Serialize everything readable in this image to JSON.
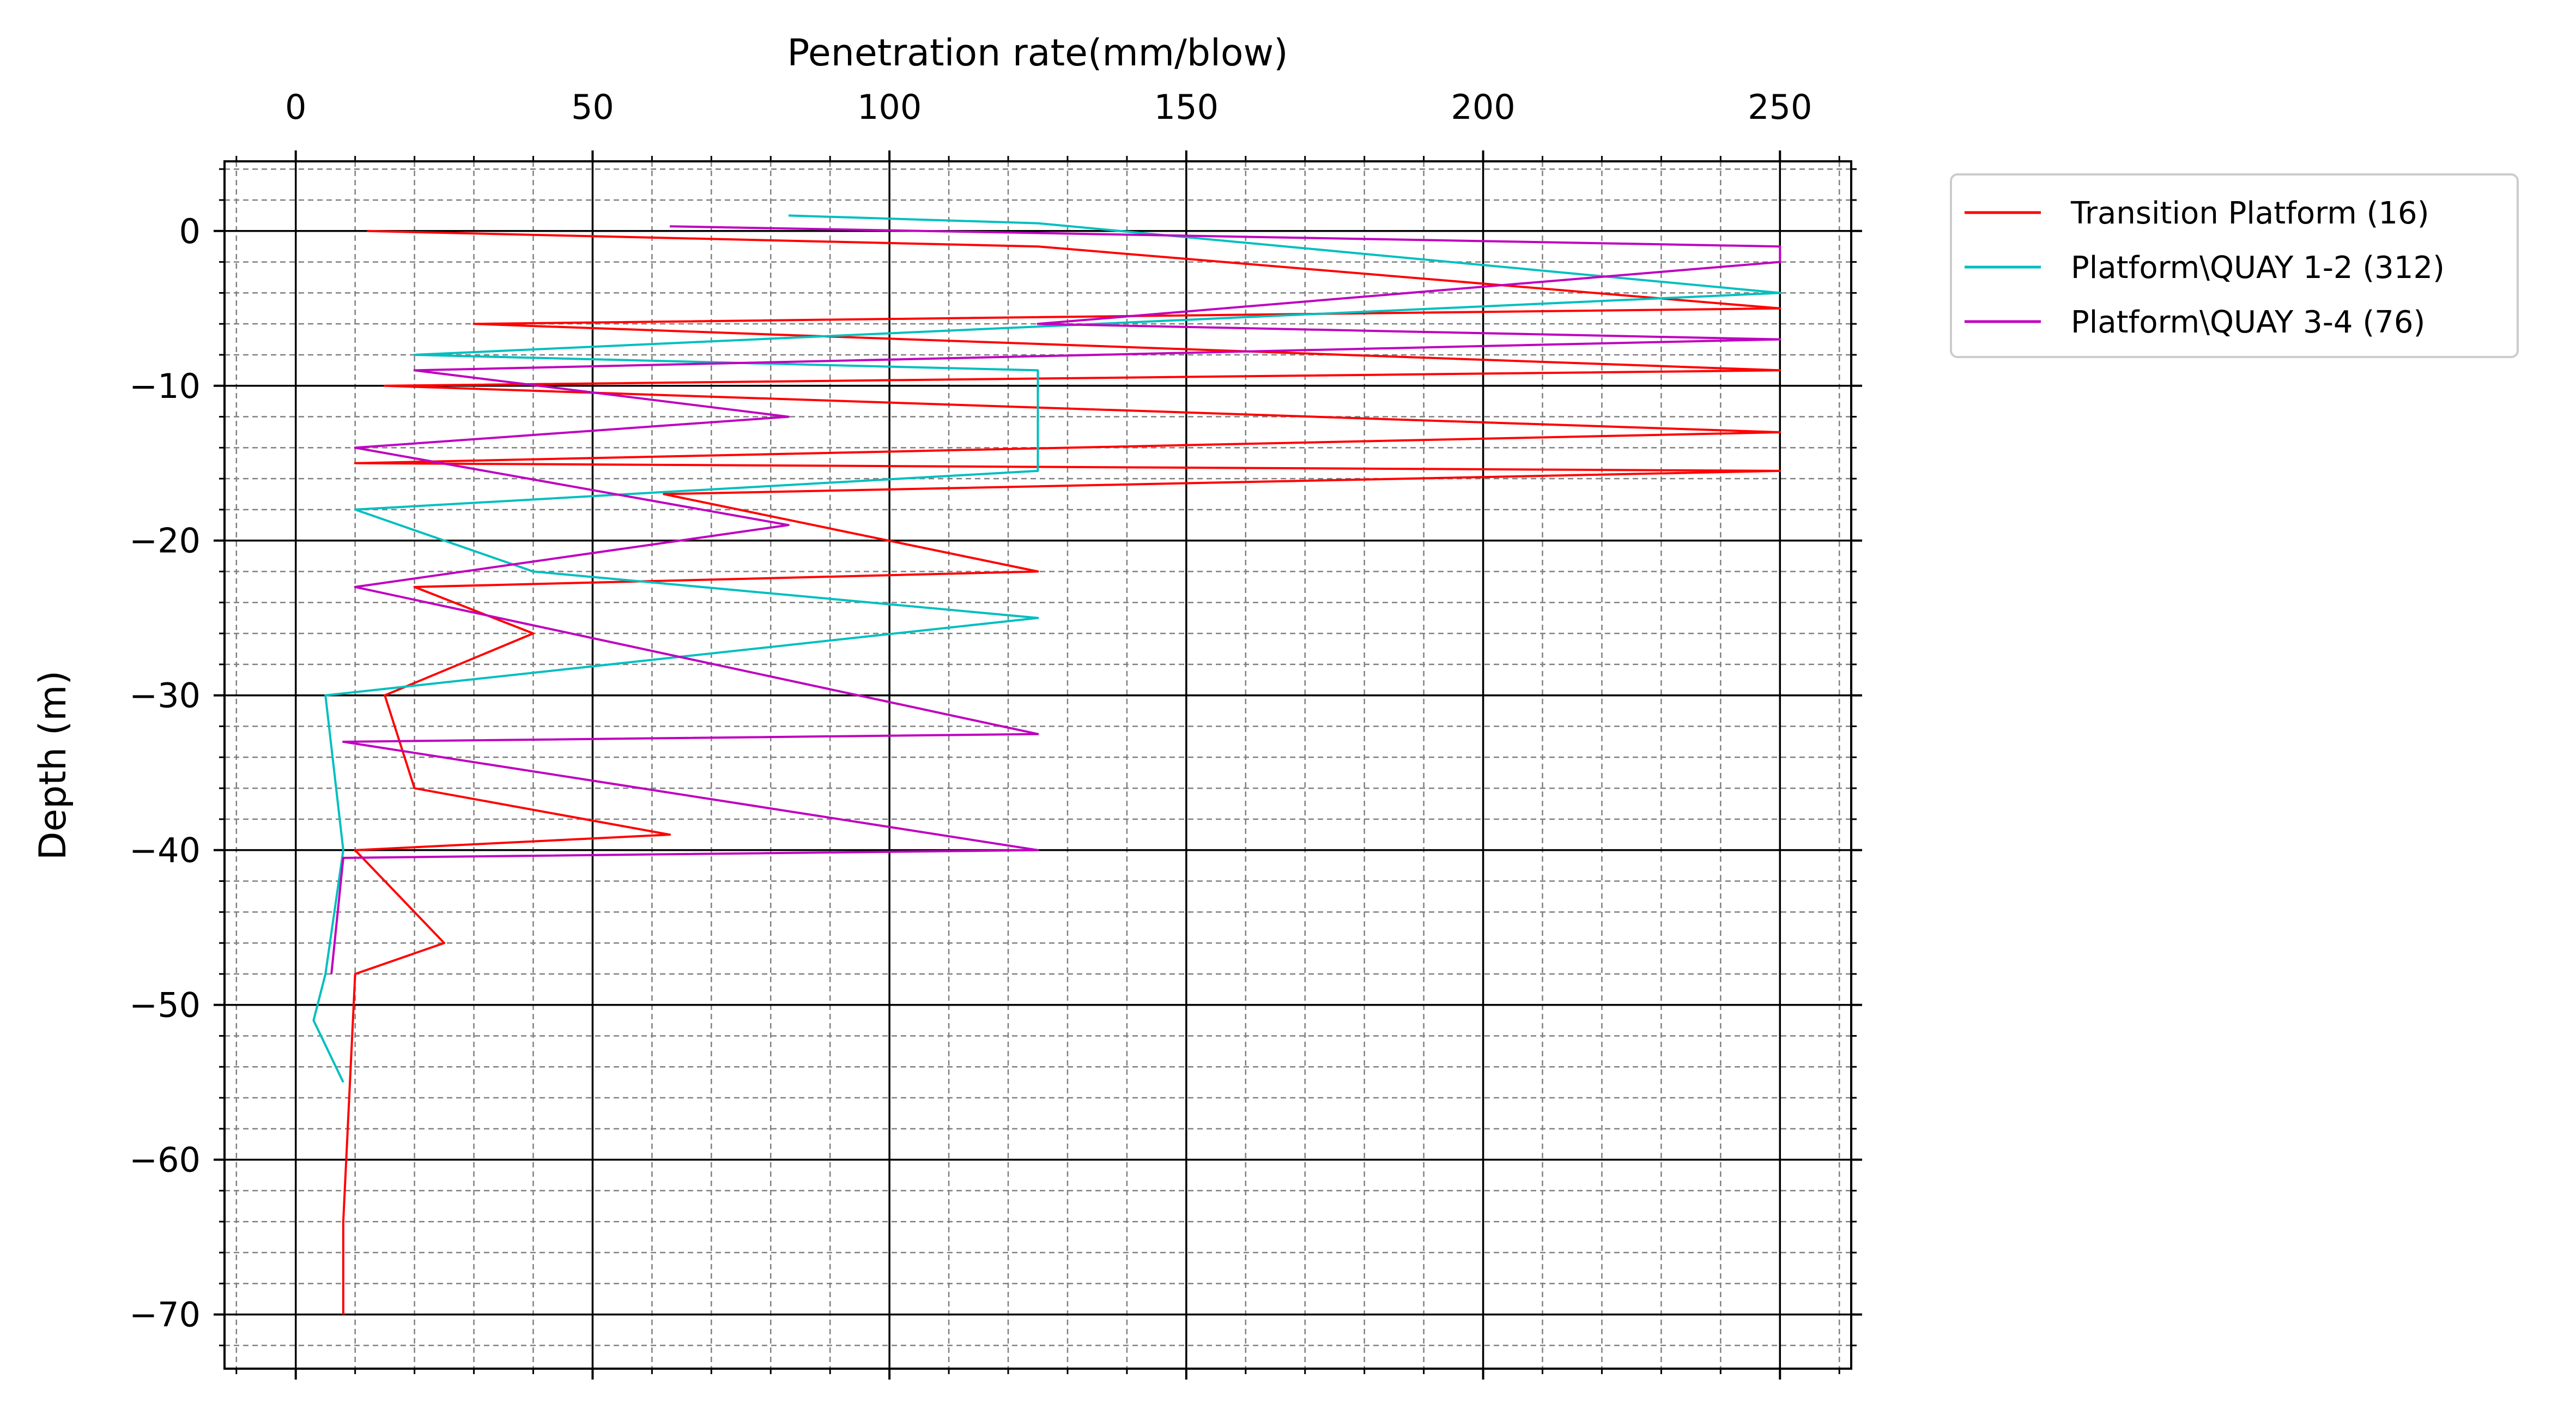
{
  "chart_data": {
    "type": "line",
    "title": "",
    "xlabel": "Penetration rate(mm/blow)",
    "ylabel": "Depth (m)",
    "xlim": [
      -12,
      262
    ],
    "ylim": [
      -73.5,
      4.5
    ],
    "x_axis_position": "top",
    "x_ticks": [
      0,
      50,
      100,
      150,
      200,
      250
    ],
    "x_tick_labels": [
      "0",
      "50",
      "100",
      "150",
      "200",
      "250"
    ],
    "y_ticks": [
      0,
      -10,
      -20,
      -30,
      -40,
      -50,
      -60,
      -70
    ],
    "y_tick_labels": [
      "0",
      "−10",
      "−20",
      "−30",
      "−40",
      "−50",
      "−60",
      "−70"
    ],
    "grid": {
      "major": true,
      "minor": true,
      "minor_style": "dashed"
    },
    "legend": {
      "placement": "outside-right"
    },
    "series": [
      {
        "name": "Transition Platform (16)",
        "color": "#ff0000",
        "representative_profile": [
          {
            "x": 12,
            "y": 0
          },
          {
            "x": 125,
            "y": -1
          },
          {
            "x": 250,
            "y": -5
          },
          {
            "x": 30,
            "y": -6
          },
          {
            "x": 250,
            "y": -9
          },
          {
            "x": 15,
            "y": -10
          },
          {
            "x": 250,
            "y": -13
          },
          {
            "x": 10,
            "y": -15
          },
          {
            "x": 250,
            "y": -15.5
          },
          {
            "x": 62,
            "y": -17
          },
          {
            "x": 125,
            "y": -22
          },
          {
            "x": 20,
            "y": -23
          },
          {
            "x": 40,
            "y": -26
          },
          {
            "x": 15,
            "y": -30
          },
          {
            "x": 20,
            "y": -36
          },
          {
            "x": 63,
            "y": -39
          },
          {
            "x": 10,
            "y": -40
          },
          {
            "x": 25,
            "y": -46
          },
          {
            "x": 10,
            "y": -48
          },
          {
            "x": 8,
            "y": -64
          },
          {
            "x": 8,
            "y": -70
          }
        ]
      },
      {
        "name": "Platform\\QUAY 1-2 (312)",
        "color": "#00bfbf",
        "representative_profile": [
          {
            "x": 83,
            "y": 1
          },
          {
            "x": 125,
            "y": 0.5
          },
          {
            "x": 250,
            "y": -4
          },
          {
            "x": 20,
            "y": -8
          },
          {
            "x": 125,
            "y": -9
          },
          {
            "x": 125,
            "y": -15.5
          },
          {
            "x": 10,
            "y": -18
          },
          {
            "x": 40,
            "y": -22
          },
          {
            "x": 125,
            "y": -25
          },
          {
            "x": 5,
            "y": -30
          },
          {
            "x": 8,
            "y": -40
          },
          {
            "x": 5,
            "y": -48
          },
          {
            "x": 3,
            "y": -51
          },
          {
            "x": 8,
            "y": -55
          }
        ]
      },
      {
        "name": "Platform\\QUAY 3-4 (76)",
        "color": "#bf00bf",
        "representative_profile": [
          {
            "x": 63,
            "y": 0.3
          },
          {
            "x": 250,
            "y": -1
          },
          {
            "x": 250,
            "y": -2
          },
          {
            "x": 125,
            "y": -6
          },
          {
            "x": 250,
            "y": -7
          },
          {
            "x": 20,
            "y": -9
          },
          {
            "x": 83,
            "y": -12
          },
          {
            "x": 10,
            "y": -14
          },
          {
            "x": 83,
            "y": -19
          },
          {
            "x": 10,
            "y": -23
          },
          {
            "x": 125,
            "y": -32.5
          },
          {
            "x": 8,
            "y": -33
          },
          {
            "x": 125,
            "y": -40
          },
          {
            "x": 8,
            "y": -40.5
          },
          {
            "x": 6,
            "y": -48
          }
        ]
      }
    ]
  }
}
